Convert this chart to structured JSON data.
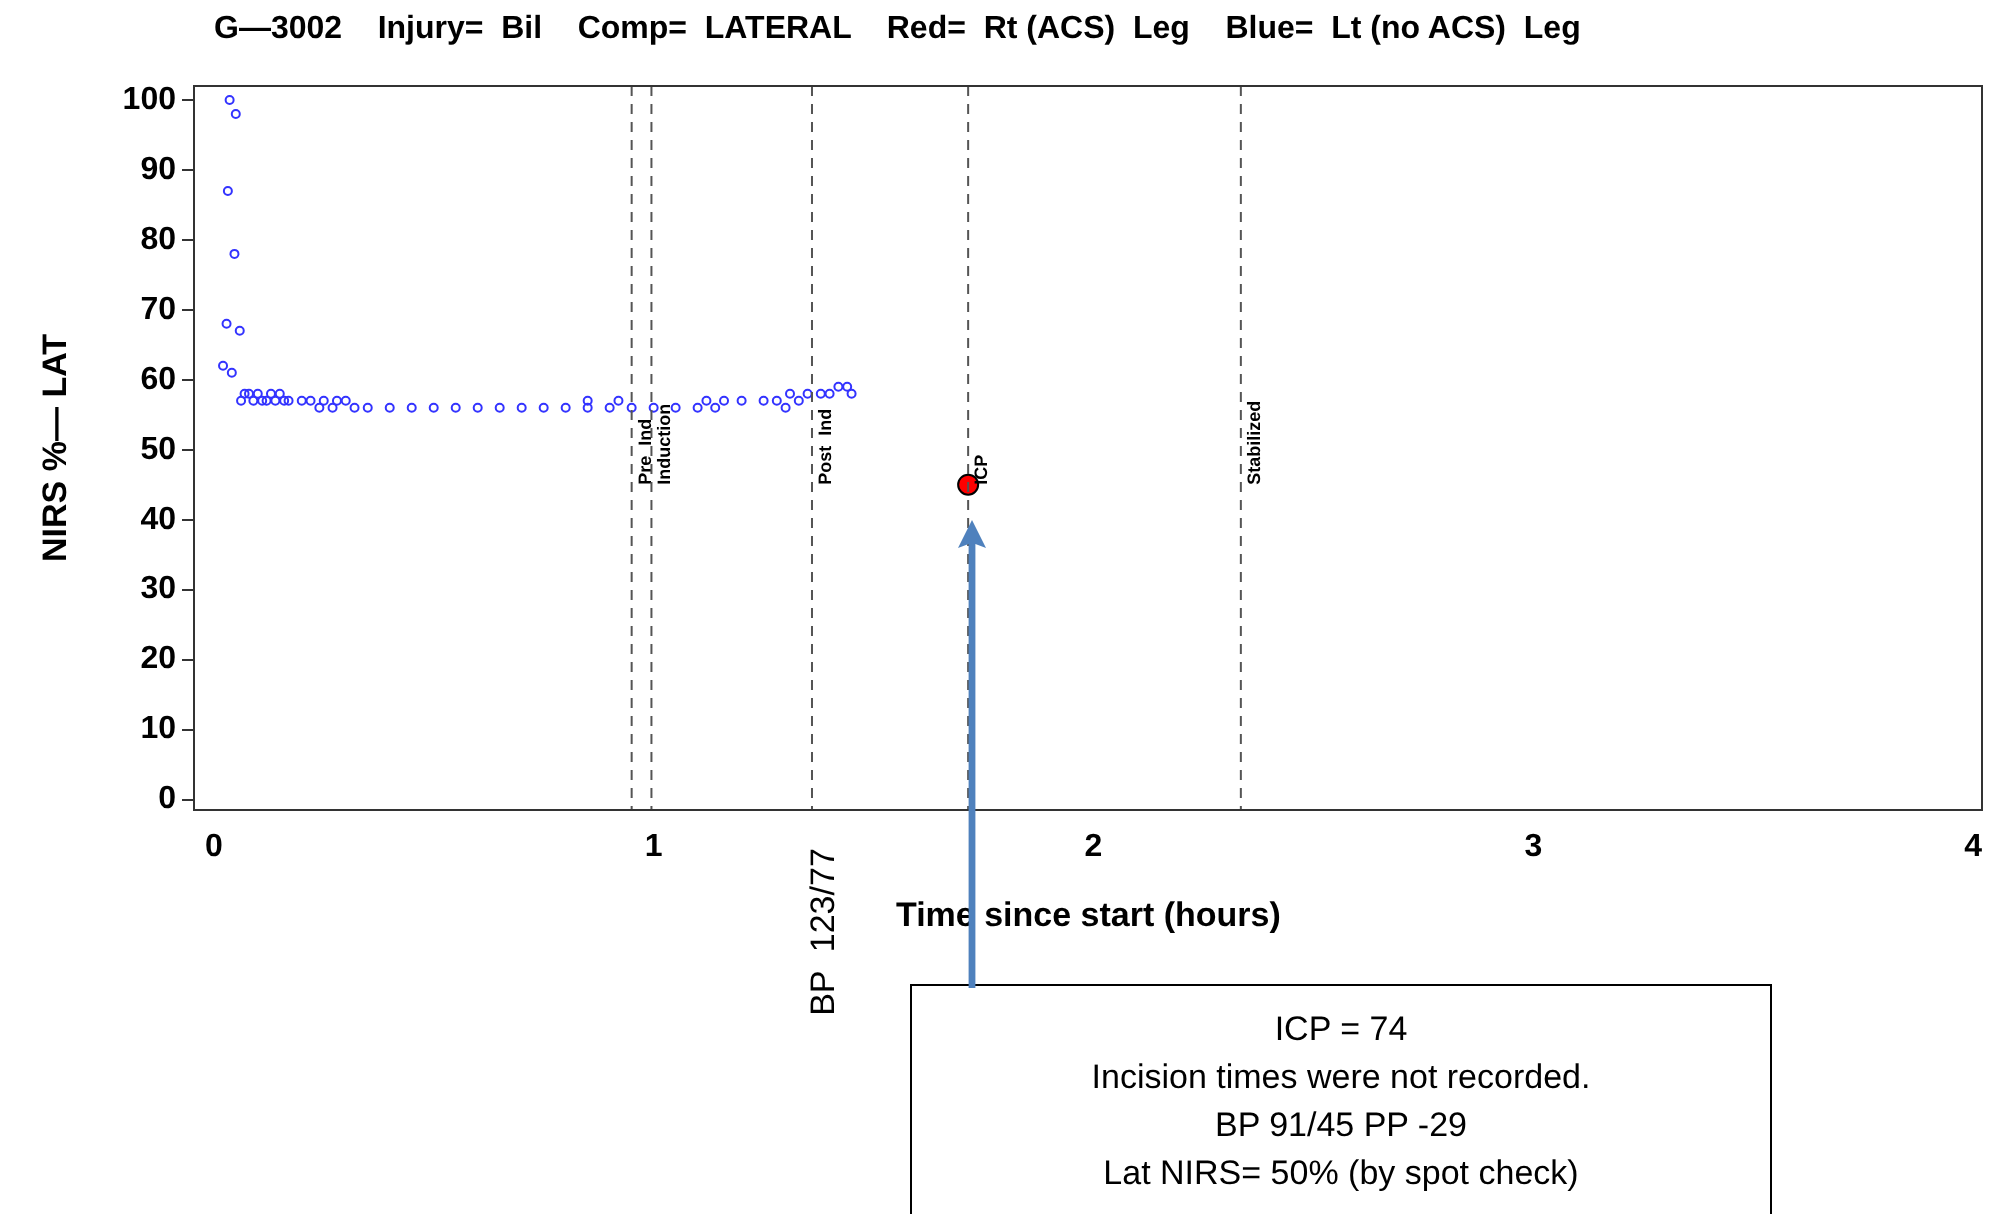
{
  "chart_data": {
    "type": "scatter",
    "title": "G—3002    Injury=  Bil    Comp=  LATERAL    Red=  Rt (ACS)  Leg    Blue=  Lt (no ACS)  Leg",
    "xlabel": "Time since start (hours)",
    "ylabel": "NIRS %— LAT",
    "xlim": [
      -0.045,
      4.02
    ],
    "xticks": [
      0,
      1,
      2,
      3,
      4
    ],
    "ylim": [
      -1.5,
      102
    ],
    "yticks": [
      0,
      10,
      20,
      30,
      40,
      50,
      60,
      70,
      80,
      90,
      100
    ],
    "grid": false,
    "legend": false,
    "marker": "circle",
    "series": [
      {
        "color": "#3333ff",
        "x": [
          0.021,
          0.029,
          0.032,
          0.036,
          0.041,
          0.047,
          0.05,
          0.059,
          0.062,
          0.07,
          0.08,
          0.09,
          0.1,
          0.11,
          0.12,
          0.13,
          0.14,
          0.15,
          0.16,
          0.17,
          0.2,
          0.22,
          0.24,
          0.25,
          0.27,
          0.28,
          0.3,
          0.32,
          0.35,
          0.4,
          0.45,
          0.5,
          0.55,
          0.6,
          0.65,
          0.7,
          0.75,
          0.8,
          0.85,
          0.85,
          0.9,
          0.92,
          0.95,
          1.0,
          1.05,
          1.1,
          1.12,
          1.14,
          1.16,
          1.2,
          1.25,
          1.28,
          1.3,
          1.31,
          1.33,
          1.35,
          1.38,
          1.4,
          1.42,
          1.44,
          1.45
        ],
        "values": [
          62,
          68,
          87,
          100,
          61,
          78,
          98,
          67,
          57,
          58,
          58,
          57,
          58,
          57,
          57,
          58,
          57,
          58,
          57,
          57,
          57,
          57,
          56,
          57,
          56,
          57,
          57,
          56,
          56,
          56,
          56,
          56,
          56,
          56,
          56,
          56,
          56,
          56,
          56,
          57,
          56,
          57,
          56,
          56,
          56,
          56,
          57,
          56,
          57,
          57,
          57,
          57,
          56,
          58,
          57,
          58,
          58,
          58,
          59,
          59,
          58
        ]
      },
      {
        "color": "#ff0000",
        "x": [
          1.715
        ],
        "values": [
          45
        ]
      }
    ],
    "ref_lines": [
      {
        "axis": "x",
        "value": 0.95,
        "label": "Pre  Ind",
        "color": "#555555",
        "line_style": "dashed"
      },
      {
        "axis": "x",
        "value": 0.995,
        "label": "Induction",
        "color": "#555555",
        "line_style": "dashed"
      },
      {
        "axis": "x",
        "value": 1.36,
        "label": "Post  Ind",
        "color": "#555555",
        "line_style": "dashed"
      },
      {
        "axis": "x",
        "value": 1.715,
        "label": "ICP",
        "color": "#555555",
        "line_style": "dashed"
      },
      {
        "axis": "x",
        "value": 2.335,
        "label": "Stabilized",
        "color": "#555555",
        "line_style": "dashed"
      }
    ],
    "annotations": [
      "BP  123/77",
      "ICP = 74",
      "Incision times were not recorded.",
      "BP 91/45   PP -29",
      "Lat NIRS= 50% (by spot check)"
    ]
  }
}
